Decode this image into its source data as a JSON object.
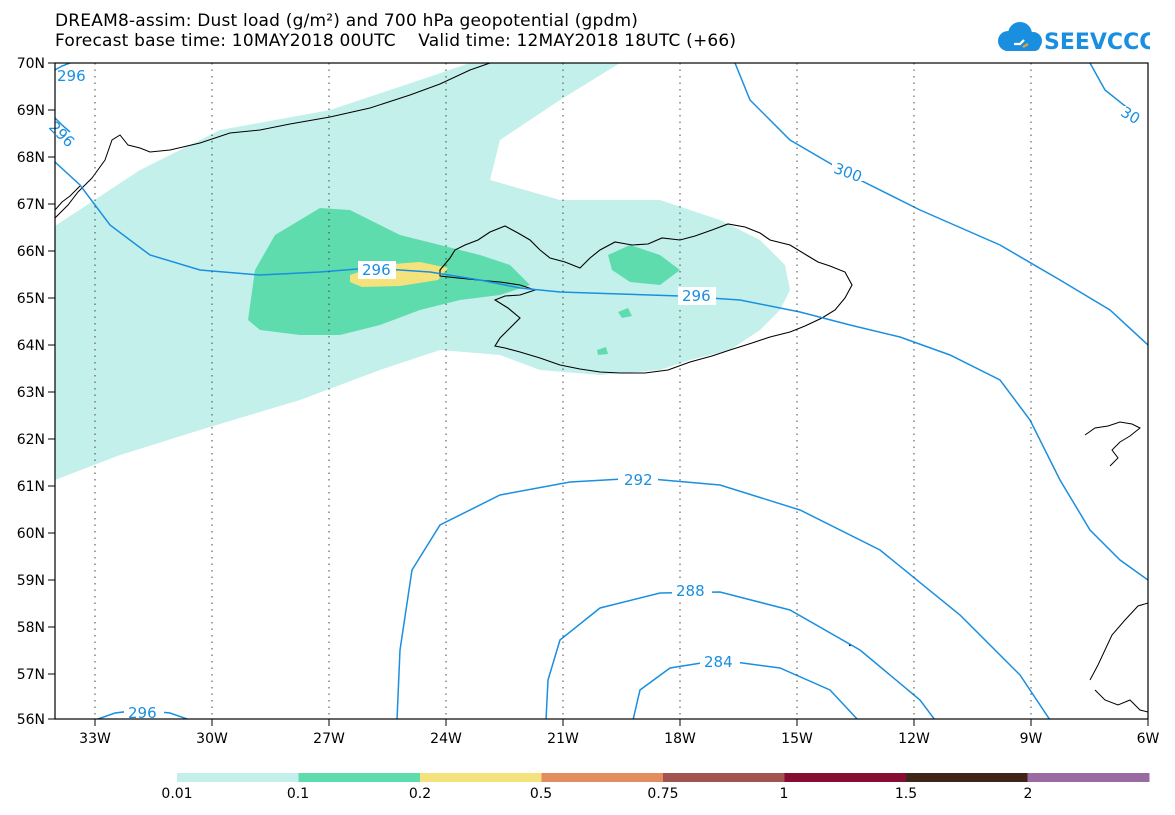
{
  "title_line1": "DREAM8-assim: Dust load (g/m²) and 700 hPa geopotential (gpdm)",
  "title_line2": "Forecast base time: 10MAY2018 00UTC    Valid time: 12MAY2018 18UTC (+66)",
  "logo_text": "SEEVCCC",
  "lat_labels": [
    "70N",
    "69N",
    "68N",
    "67N",
    "66N",
    "65N",
    "64N",
    "63N",
    "62N",
    "61N",
    "60N",
    "59N",
    "58N",
    "57N",
    "56N"
  ],
  "lon_labels": [
    "33W",
    "30W",
    "27W",
    "24W",
    "21W",
    "18W",
    "15W",
    "12W",
    "9W",
    "6W"
  ],
  "contour_labels": [
    "296",
    "296",
    "300",
    "30",
    "296",
    "296",
    "292",
    "288",
    "284",
    "296"
  ],
  "colorbar": {
    "ticks": [
      "0.01",
      "0.1",
      "0.2",
      "0.5",
      "0.75",
      "1",
      "1.5",
      "2"
    ],
    "colors": [
      "#c4f0ec",
      "#5fdcae",
      "#f4e27c",
      "#e38c60",
      "#a45450",
      "#860d32",
      "#3e2518",
      "#9a6ba2"
    ]
  },
  "colors": {
    "contour": "#1a8fe0",
    "dust_low": "#c4f0ec",
    "dust_mid": "#5fdcae",
    "dust_high": "#f4e27c",
    "logo": "#1a8fe0"
  }
}
